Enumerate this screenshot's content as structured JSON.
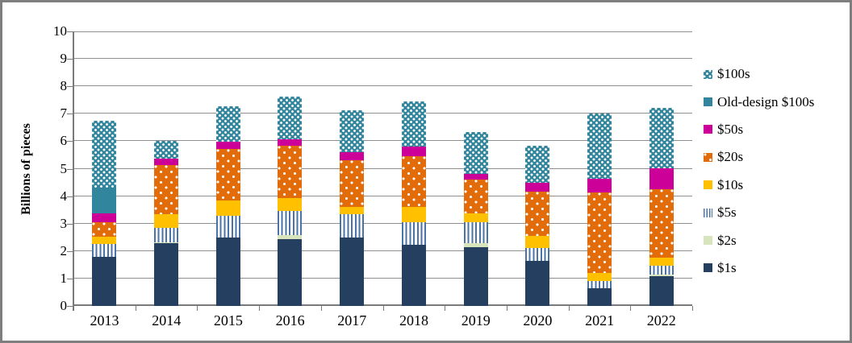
{
  "figure": {
    "border_color": "#7E7E7E",
    "background": "#FFFFFF",
    "gridline_color": "#8F8F8F"
  },
  "chart_data": {
    "type": "bar",
    "stacked": true,
    "title": "",
    "xlabel": "",
    "ylabel": "Billions of pieces",
    "ylim": [
      0,
      10
    ],
    "yticks": [
      "0",
      "1",
      "2",
      "3",
      "4",
      "5",
      "6",
      "7",
      "8",
      "9",
      "10"
    ],
    "grid": true,
    "legend_position": "right",
    "categories": [
      "2013",
      "2014",
      "2015",
      "2016",
      "2017",
      "2018",
      "2019",
      "2020",
      "2021",
      "2022"
    ],
    "series": [
      {
        "name": "$1s",
        "color": "#243F60",
        "pattern": "solid",
        "values": [
          1.8,
          2.28,
          2.48,
          2.42,
          2.5,
          2.23,
          2.14,
          1.64,
          0.66,
          1.08
        ]
      },
      {
        "name": "$2s",
        "color": "#D8E4BC",
        "pattern": "solid",
        "values": [
          0,
          0.04,
          0,
          0.16,
          0,
          0,
          0.14,
          0,
          0,
          0.06
        ]
      },
      {
        "name": "$5s",
        "color": "#4A74A8",
        "pattern": "vstripes",
        "values": [
          0.45,
          0.52,
          0.8,
          0.88,
          0.83,
          0.81,
          0.76,
          0.47,
          0.26,
          0.33
        ]
      },
      {
        "name": "$10s",
        "color": "#FFC000",
        "pattern": "solid",
        "values": [
          0.27,
          0.5,
          0.57,
          0.48,
          0.28,
          0.57,
          0.34,
          0.44,
          0.28,
          0.29
        ]
      },
      {
        "name": "$20s",
        "color": "#E36C0A",
        "pattern": "sparse-dots",
        "values": [
          0.54,
          1.78,
          1.86,
          1.89,
          1.7,
          1.85,
          1.22,
          1.61,
          2.93,
          2.5
        ]
      },
      {
        "name": "$50s",
        "color": "#CC0099",
        "pattern": "solid",
        "values": [
          0.3,
          0.26,
          0.27,
          0.24,
          0.29,
          0.34,
          0.2,
          0.32,
          0.49,
          0.76
        ]
      },
      {
        "name": "Old-design $100s",
        "color": "#31859C",
        "pattern": "solid",
        "values": [
          0.95,
          0,
          0,
          0,
          0,
          0,
          0,
          0,
          0,
          0
        ]
      },
      {
        "name": "$100s",
        "color": "#31859C",
        "pattern": "dense-dots",
        "values": [
          2.44,
          0.62,
          1.3,
          1.55,
          1.53,
          1.65,
          1.55,
          1.37,
          2.38,
          2.21
        ]
      }
    ],
    "legend_order_top_to_bottom": [
      "$100s",
      "Old-design $100s",
      "$50s",
      "$20s",
      "$10s",
      "$5s",
      "$2s",
      "$1s"
    ]
  }
}
